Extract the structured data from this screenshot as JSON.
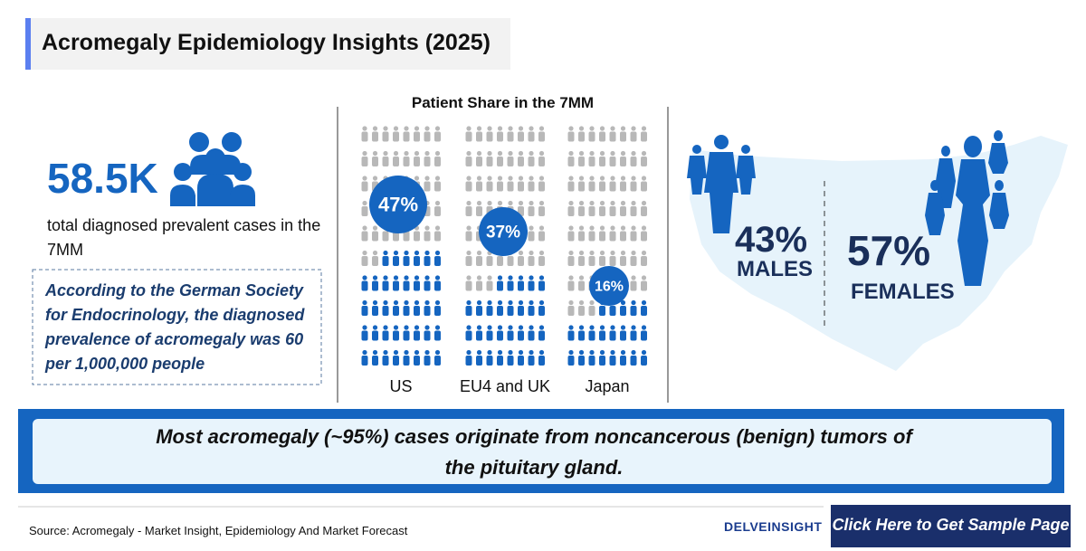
{
  "header": {
    "title": "Acromegaly Epidemiology Insights (2025)"
  },
  "summary": {
    "value": "58.5K",
    "description": "total diagnosed prevalent cases in the 7MM",
    "note": "According to the German Society for Endocrinology, the diagnosed prevalence of acromegaly was 60 per 1,000,000 people"
  },
  "share": {
    "title": "Patient Share in the 7MM",
    "regions": [
      {
        "label": "US",
        "value": "47%"
      },
      {
        "label": "EU4 and UK",
        "value": "37%"
      },
      {
        "label": "Japan",
        "value": "16%"
      }
    ]
  },
  "gender": {
    "males": {
      "value": "43%",
      "label": "MALES"
    },
    "females": {
      "value": "57%",
      "label": "FEMALES"
    }
  },
  "banner": {
    "text": "Most acromegaly (~95%) cases originate from noncancerous (benign) tumors of the pituitary gland."
  },
  "footer": {
    "source": "Source: Acromegaly - Market Insight, Epidemiology And Market Forecast",
    "logo": "DELVEINSIGHT",
    "button": "Click Here to Get Sample Page"
  }
}
